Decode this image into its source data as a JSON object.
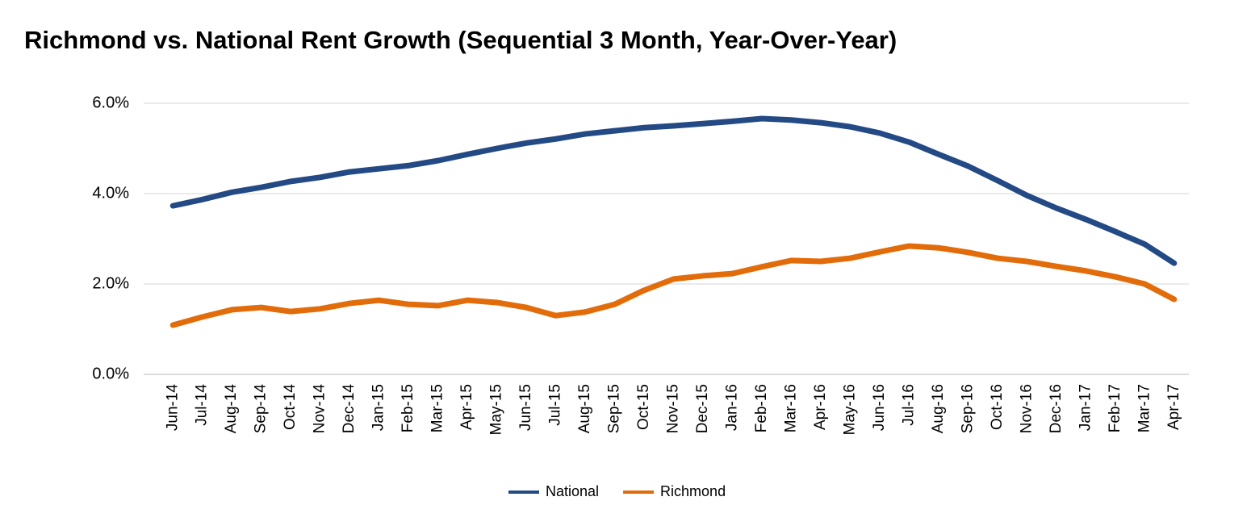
{
  "chart_data": {
    "type": "line",
    "title": "Richmond vs. National Rent Growth (Sequential 3 Month, Year-Over-Year)",
    "categories": [
      "Jun-14",
      "Jul-14",
      "Aug-14",
      "Sep-14",
      "Oct-14",
      "Nov-14",
      "Dec-14",
      "Jan-15",
      "Feb-15",
      "Mar-15",
      "Apr-15",
      "May-15",
      "Jun-15",
      "Jul-15",
      "Aug-15",
      "Sep-15",
      "Oct-15",
      "Nov-15",
      "Dec-15",
      "Jan-16",
      "Feb-16",
      "Mar-16",
      "Apr-16",
      "May-16",
      "Jun-16",
      "Jul-16",
      "Aug-16",
      "Sep-16",
      "Oct-16",
      "Nov-16",
      "Dec-16",
      "Jan-17",
      "Feb-17",
      "Mar-17",
      "Apr-17"
    ],
    "series": [
      {
        "name": "National",
        "color": "#234a85",
        "values": [
          3.73,
          3.87,
          4.03,
          4.14,
          4.27,
          4.36,
          4.48,
          4.55,
          4.62,
          4.73,
          4.87,
          5.0,
          5.12,
          5.21,
          5.32,
          5.39,
          5.46,
          5.5,
          5.55,
          5.6,
          5.66,
          5.63,
          5.57,
          5.48,
          5.34,
          5.14,
          4.87,
          4.61,
          4.29,
          3.96,
          3.68,
          3.43,
          3.16,
          2.88,
          2.46
        ]
      },
      {
        "name": "Richmond",
        "color": "#e36c0a",
        "values": [
          1.09,
          1.27,
          1.43,
          1.48,
          1.39,
          1.45,
          1.57,
          1.64,
          1.55,
          1.52,
          1.64,
          1.59,
          1.48,
          1.3,
          1.38,
          1.55,
          1.86,
          2.11,
          2.18,
          2.23,
          2.38,
          2.52,
          2.5,
          2.57,
          2.71,
          2.84,
          2.8,
          2.7,
          2.57,
          2.5,
          2.39,
          2.29,
          2.16,
          2.0,
          1.66
        ]
      }
    ],
    "ylim": [
      0,
      6
    ],
    "yticks": [
      {
        "value": 0,
        "label": "0.0%"
      },
      {
        "value": 2,
        "label": "2.0%"
      },
      {
        "value": 4,
        "label": "4.0%"
      },
      {
        "value": 6,
        "label": "6.0%"
      }
    ],
    "grid": true,
    "legend": "bottom"
  }
}
